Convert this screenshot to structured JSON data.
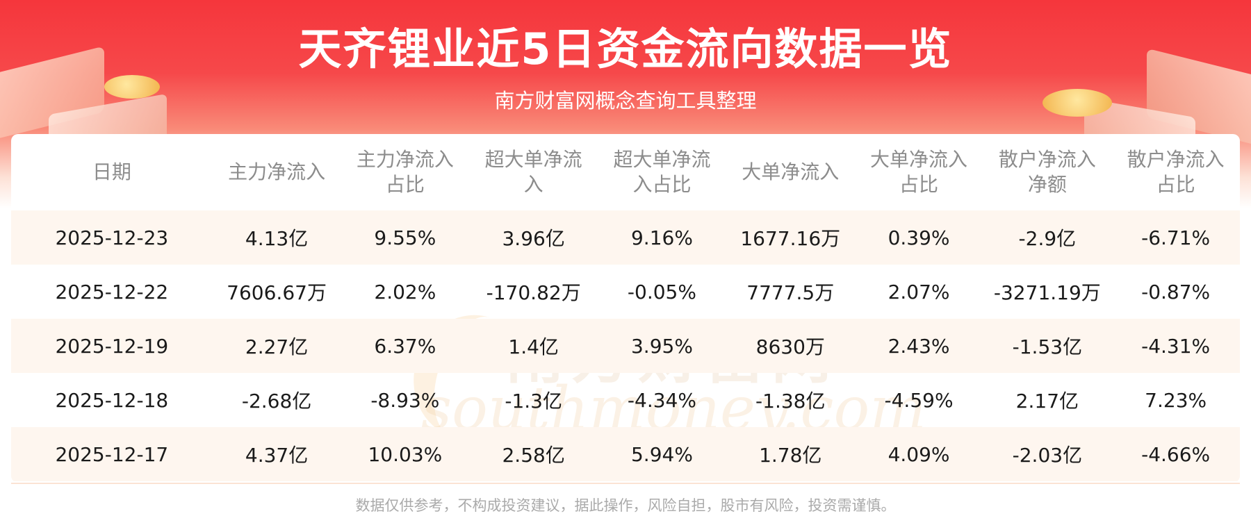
{
  "header": {
    "title": "天齐锂业近5日资金流向数据一览",
    "subtitle": "南方财富网概念查询工具整理"
  },
  "table": {
    "columns": [
      [
        "日期"
      ],
      [
        "主力净流入"
      ],
      [
        "主力净流入",
        "占比"
      ],
      [
        "超大单净流",
        "入"
      ],
      [
        "超大单净流",
        "入占比"
      ],
      [
        "大单净流入"
      ],
      [
        "大单净流入",
        "占比"
      ],
      [
        "散户净流入",
        "净额"
      ],
      [
        "散户净流入",
        "占比"
      ]
    ],
    "rows": [
      [
        "2025-12-23",
        "4.13亿",
        "9.55%",
        "3.96亿",
        "9.16%",
        "1677.16万",
        "0.39%",
        "-2.9亿",
        "-6.71%"
      ],
      [
        "2025-12-22",
        "7606.67万",
        "2.02%",
        "-170.82万",
        "-0.05%",
        "7777.5万",
        "2.07%",
        "-3271.19万",
        "-0.87%"
      ],
      [
        "2025-12-19",
        "2.27亿",
        "6.37%",
        "1.4亿",
        "3.95%",
        "8630万",
        "2.43%",
        "-1.53亿",
        "-4.31%"
      ],
      [
        "2025-12-18",
        "-2.68亿",
        "-8.93%",
        "-1.3亿",
        "-4.34%",
        "-1.38亿",
        "-4.59%",
        "2.17亿",
        "7.23%"
      ],
      [
        "2025-12-17",
        "4.37亿",
        "10.03%",
        "2.58亿",
        "5.94%",
        "1.78亿",
        "4.09%",
        "-2.03亿",
        "-4.66%"
      ]
    ]
  },
  "watermark": {
    "cn": "南方财富网",
    "en": "southmoney.com"
  },
  "footer": {
    "disclaimer": "数据仅供参考，不构成投资建议，据此操作，风险自担，股市有风险，投资需谨慎。"
  },
  "colors": {
    "banner_red": "#f5363c",
    "row_stripe": "#fef6ef",
    "header_text": "#8c8c8c"
  }
}
